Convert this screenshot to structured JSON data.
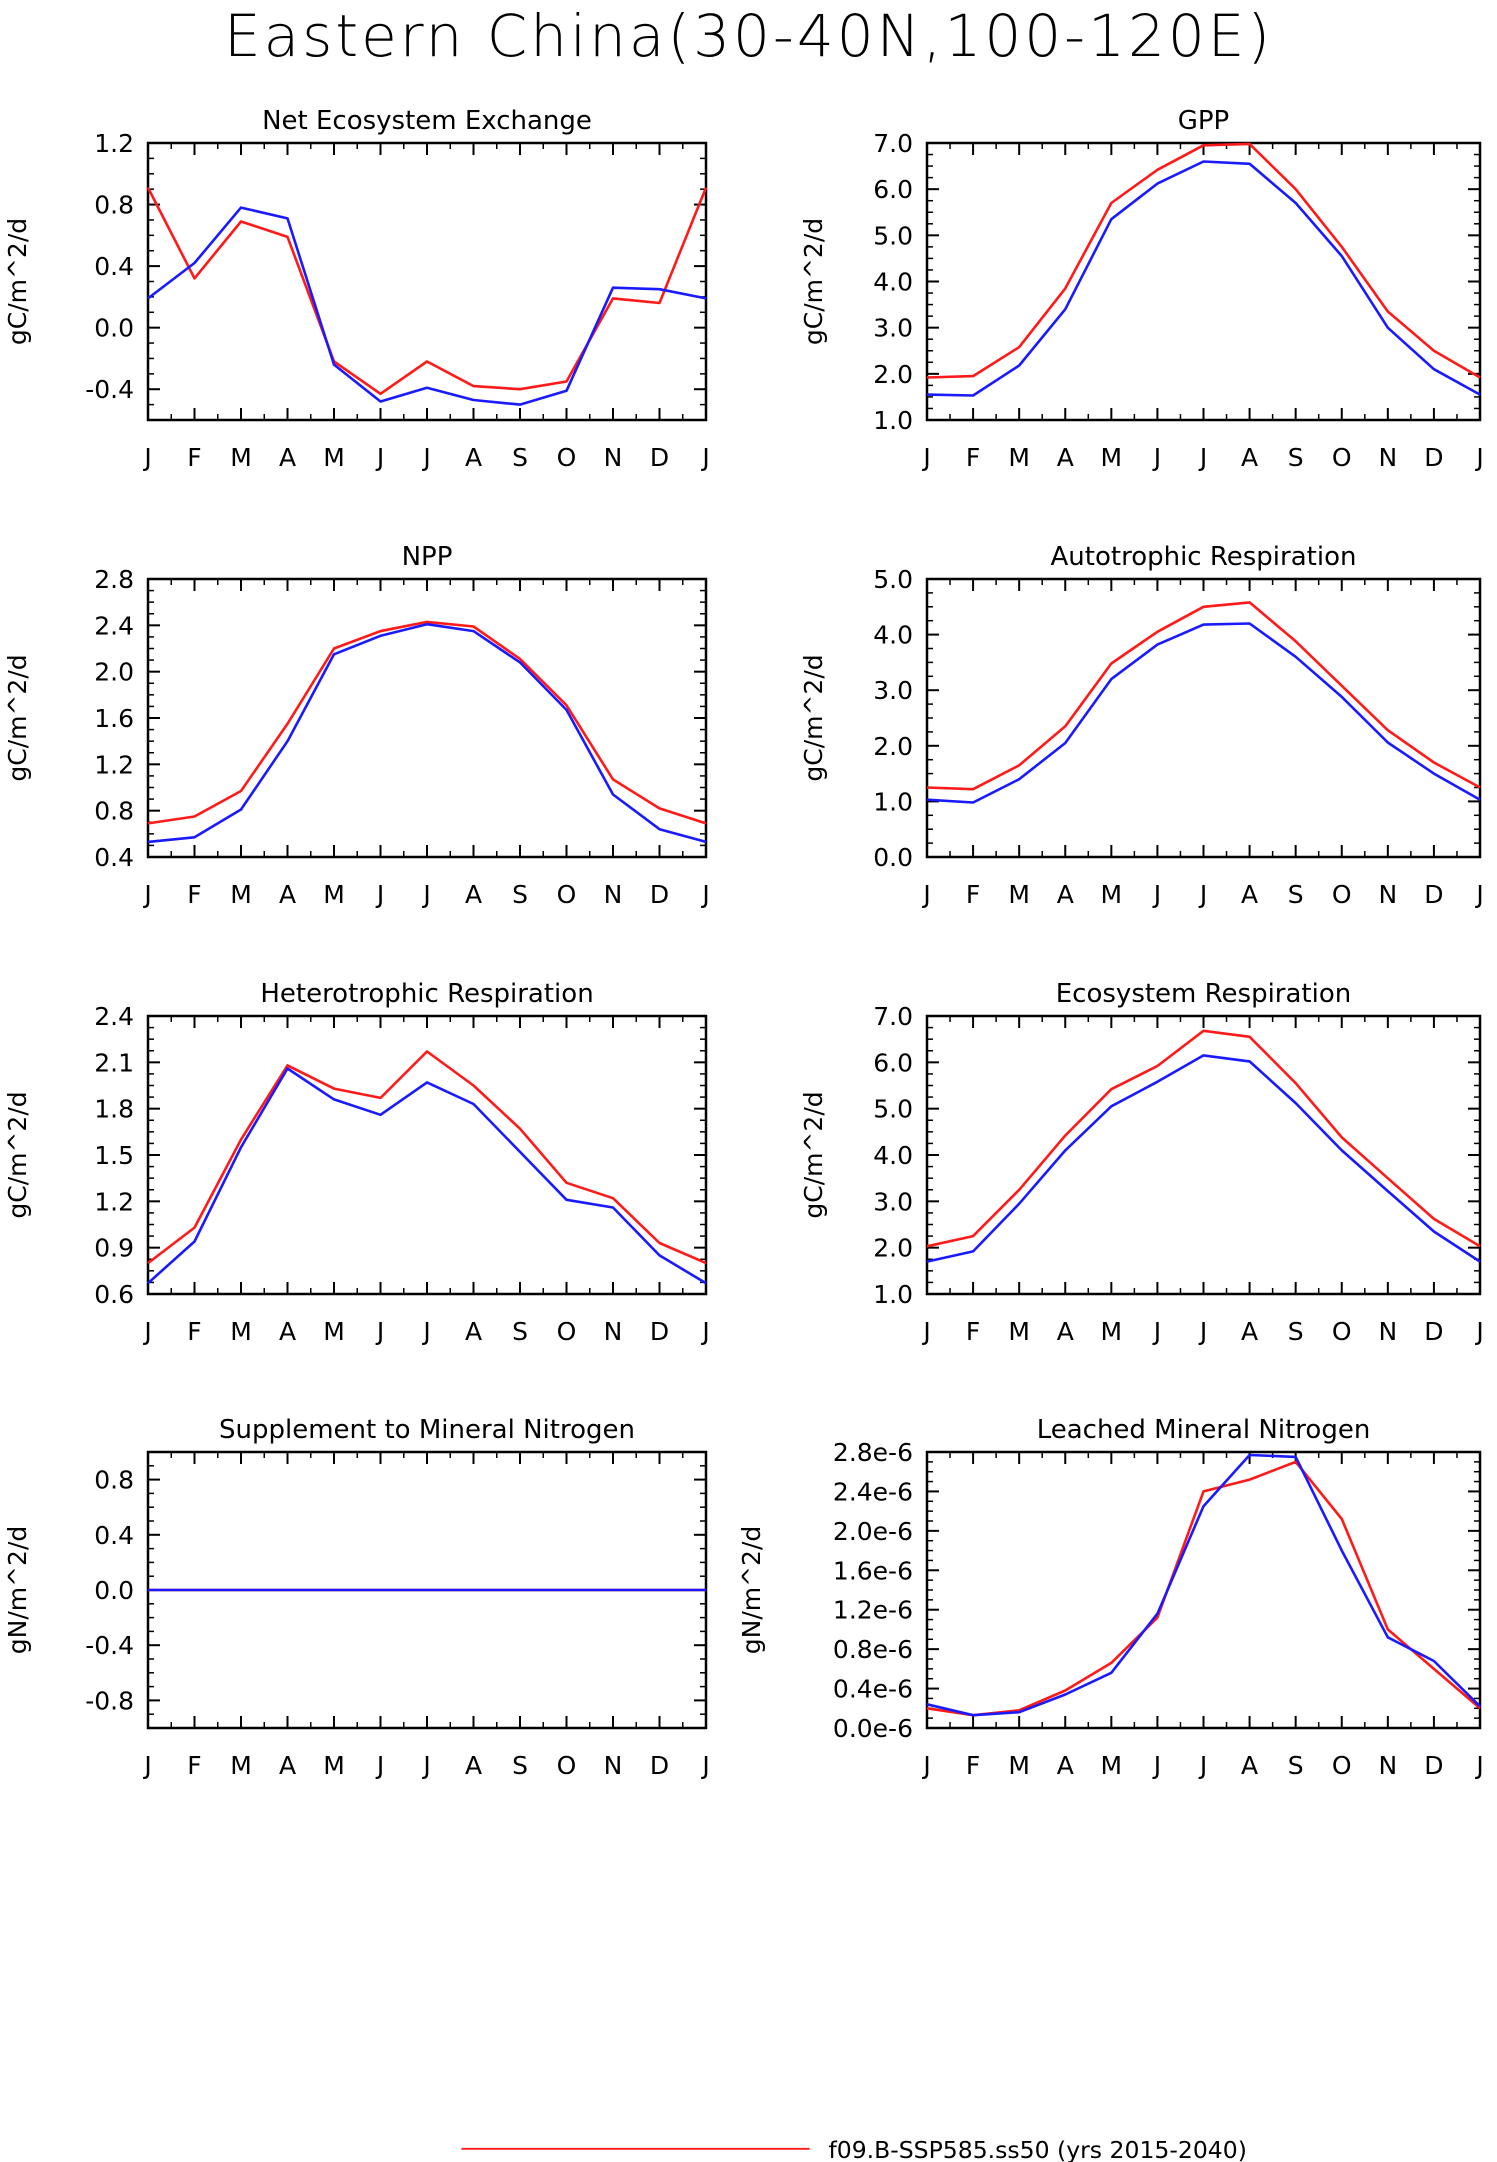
{
  "title": "Eastern China(30-40N,100-120E)",
  "colors": {
    "red": "#ff1a1a",
    "blue": "#1a1aff"
  },
  "chart_data": [
    {
      "type": "line",
      "title": "Net Ecosystem Exchange",
      "ylabel": "gC/m^2/d",
      "x": [
        "J",
        "F",
        "M",
        "A",
        "M",
        "J",
        "J",
        "A",
        "S",
        "O",
        "N",
        "D",
        "J"
      ],
      "ylim": [
        -0.6,
        1.2
      ],
      "yticks": [
        -0.4,
        0.0,
        0.4,
        0.8,
        1.2
      ],
      "ytick_labels": [
        "-0.4",
        "0.0",
        "0.4",
        "0.8",
        "1.2"
      ],
      "series": [
        {
          "color": "red",
          "values": [
            0.91,
            0.32,
            0.69,
            0.59,
            -0.22,
            -0.43,
            -0.22,
            -0.38,
            -0.4,
            -0.35,
            0.19,
            0.16,
            0.91
          ]
        },
        {
          "color": "blue",
          "values": [
            0.19,
            0.42,
            0.78,
            0.71,
            -0.24,
            -0.48,
            -0.39,
            -0.47,
            -0.5,
            -0.41,
            0.26,
            0.25,
            0.19
          ]
        }
      ]
    },
    {
      "type": "line",
      "title": "GPP",
      "ylabel": "gC/m^2/d",
      "x": [
        "J",
        "F",
        "M",
        "A",
        "M",
        "J",
        "J",
        "A",
        "S",
        "O",
        "N",
        "D",
        "J"
      ],
      "ylim": [
        1.0,
        7.0
      ],
      "yticks": [
        1.0,
        2.0,
        3.0,
        4.0,
        5.0,
        6.0,
        7.0
      ],
      "ytick_labels": [
        "1.0",
        "2.0",
        "3.0",
        "4.0",
        "5.0",
        "6.0",
        "7.0"
      ],
      "series": [
        {
          "color": "red",
          "values": [
            1.92,
            1.95,
            2.58,
            3.85,
            5.7,
            6.42,
            6.95,
            6.98,
            6.0,
            4.75,
            3.35,
            2.5,
            1.92
          ]
        },
        {
          "color": "blue",
          "values": [
            1.55,
            1.53,
            2.18,
            3.4,
            5.35,
            6.12,
            6.6,
            6.55,
            5.7,
            4.55,
            3.0,
            2.1,
            1.55
          ]
        }
      ]
    },
    {
      "type": "line",
      "title": "NPP",
      "ylabel": "gC/m^2/d",
      "x": [
        "J",
        "F",
        "M",
        "A",
        "M",
        "J",
        "J",
        "A",
        "S",
        "O",
        "N",
        "D",
        "J"
      ],
      "ylim": [
        0.4,
        2.8
      ],
      "yticks": [
        0.4,
        0.8,
        1.2,
        1.6,
        2.0,
        2.4,
        2.8
      ],
      "ytick_labels": [
        "0.4",
        "0.8",
        "1.2",
        "1.6",
        "2.0",
        "2.4",
        "2.8"
      ],
      "series": [
        {
          "color": "red",
          "values": [
            0.69,
            0.75,
            0.97,
            1.55,
            2.2,
            2.35,
            2.43,
            2.39,
            2.11,
            1.71,
            1.07,
            0.82,
            0.69
          ]
        },
        {
          "color": "blue",
          "values": [
            0.53,
            0.57,
            0.81,
            1.4,
            2.15,
            2.31,
            2.41,
            2.35,
            2.08,
            1.67,
            0.94,
            0.64,
            0.53
          ]
        }
      ]
    },
    {
      "type": "line",
      "title": "Autotrophic Respiration",
      "ylabel": "gC/m^2/d",
      "x": [
        "J",
        "F",
        "M",
        "A",
        "M",
        "J",
        "J",
        "A",
        "S",
        "O",
        "N",
        "D",
        "J"
      ],
      "ylim": [
        0.0,
        5.0
      ],
      "yticks": [
        0.0,
        1.0,
        2.0,
        3.0,
        4.0,
        5.0
      ],
      "ytick_labels": [
        "0.0",
        "1.0",
        "2.0",
        "3.0",
        "4.0",
        "5.0"
      ],
      "series": [
        {
          "color": "red",
          "values": [
            1.25,
            1.22,
            1.65,
            2.35,
            3.48,
            4.05,
            4.5,
            4.58,
            3.88,
            3.08,
            2.28,
            1.7,
            1.25
          ]
        },
        {
          "color": "blue",
          "values": [
            1.03,
            0.98,
            1.4,
            2.05,
            3.2,
            3.82,
            4.18,
            4.2,
            3.6,
            2.88,
            2.06,
            1.5,
            1.03
          ]
        }
      ]
    },
    {
      "type": "line",
      "title": "Heterotrophic Respiration",
      "ylabel": "gC/m^2/d",
      "x": [
        "J",
        "F",
        "M",
        "A",
        "M",
        "J",
        "J",
        "A",
        "S",
        "O",
        "N",
        "D",
        "J"
      ],
      "ylim": [
        0.6,
        2.4
      ],
      "yticks": [
        0.6,
        0.9,
        1.2,
        1.5,
        1.8,
        2.1,
        2.4
      ],
      "ytick_labels": [
        "0.6",
        "0.9",
        "1.2",
        "1.5",
        "1.8",
        "2.1",
        "2.4"
      ],
      "series": [
        {
          "color": "red",
          "values": [
            0.8,
            1.03,
            1.6,
            2.08,
            1.93,
            1.87,
            2.17,
            1.95,
            1.67,
            1.32,
            1.22,
            0.93,
            0.8
          ]
        },
        {
          "color": "blue",
          "values": [
            0.67,
            0.94,
            1.55,
            2.06,
            1.86,
            1.76,
            1.97,
            1.83,
            1.52,
            1.21,
            1.16,
            0.85,
            0.67
          ]
        }
      ]
    },
    {
      "type": "line",
      "title": "Ecosystem Respiration",
      "ylabel": "gC/m^2/d",
      "x": [
        "J",
        "F",
        "M",
        "A",
        "M",
        "J",
        "J",
        "A",
        "S",
        "O",
        "N",
        "D",
        "J"
      ],
      "ylim": [
        1.0,
        7.0
      ],
      "yticks": [
        1.0,
        2.0,
        3.0,
        4.0,
        5.0,
        6.0,
        7.0
      ],
      "ytick_labels": [
        "1.0",
        "2.0",
        "3.0",
        "4.0",
        "5.0",
        "6.0",
        "7.0"
      ],
      "series": [
        {
          "color": "red",
          "values": [
            2.03,
            2.25,
            3.25,
            4.42,
            5.42,
            5.92,
            6.68,
            6.55,
            5.55,
            4.38,
            3.5,
            2.62,
            2.03
          ]
        },
        {
          "color": "blue",
          "values": [
            1.7,
            1.92,
            2.95,
            4.1,
            5.05,
            5.58,
            6.15,
            6.02,
            5.12,
            4.1,
            3.22,
            2.35,
            1.7
          ]
        }
      ]
    },
    {
      "type": "line",
      "title": "Supplement to Mineral Nitrogen",
      "ylabel": "gN/m^2/d",
      "x": [
        "J",
        "F",
        "M",
        "A",
        "M",
        "J",
        "J",
        "A",
        "S",
        "O",
        "N",
        "D",
        "J"
      ],
      "ylim": [
        -1.0,
        1.0
      ],
      "yticks": [
        -0.8,
        -0.4,
        0.0,
        0.4,
        0.8
      ],
      "ytick_labels": [
        "-0.8",
        "-0.4",
        "0.0",
        "0.4",
        "0.8"
      ],
      "series": [
        {
          "color": "red",
          "values": [
            0,
            0,
            0,
            0,
            0,
            0,
            0,
            0,
            0,
            0,
            0,
            0,
            0
          ]
        },
        {
          "color": "blue",
          "values": [
            0,
            0,
            0,
            0,
            0,
            0,
            0,
            0,
            0,
            0,
            0,
            0,
            0
          ]
        }
      ]
    },
    {
      "type": "line",
      "title": "Leached Mineral Nitrogen",
      "ylabel": "gN/m^2/d",
      "x": [
        "J",
        "F",
        "M",
        "A",
        "M",
        "J",
        "J",
        "A",
        "S",
        "O",
        "N",
        "D",
        "J"
      ],
      "ylim": [
        0.0,
        2.8e-06
      ],
      "yticks": [
        0.0,
        4e-07,
        8e-07,
        1.2e-06,
        1.6e-06,
        2e-06,
        2.4e-06,
        2.8e-06
      ],
      "ytick_labels": [
        "0.0e-6",
        "0.4e-6",
        "0.8e-6",
        "1.2e-6",
        "1.6e-6",
        "2.0e-6",
        "2.4e-6",
        "2.8e-6"
      ],
      "series": [
        {
          "color": "red",
          "values": [
            2e-07,
            1.3e-07,
            1.8e-07,
            3.8e-07,
            6.6e-07,
            1.12e-06,
            2.4e-06,
            2.52e-06,
            2.7e-06,
            2.12e-06,
            1e-06,
            6e-07,
            2e-07
          ]
        },
        {
          "color": "blue",
          "values": [
            2.4e-07,
            1.3e-07,
            1.6e-07,
            3.4e-07,
            5.6e-07,
            1.16e-06,
            2.25e-06,
            2.77e-06,
            2.75e-06,
            1.8e-06,
            9.2e-07,
            6.8e-07,
            2.2e-07
          ]
        }
      ]
    }
  ],
  "legend": {
    "label": "f09.B-SSP585.ss50 (yrs 2015-2040)",
    "color": "red"
  }
}
